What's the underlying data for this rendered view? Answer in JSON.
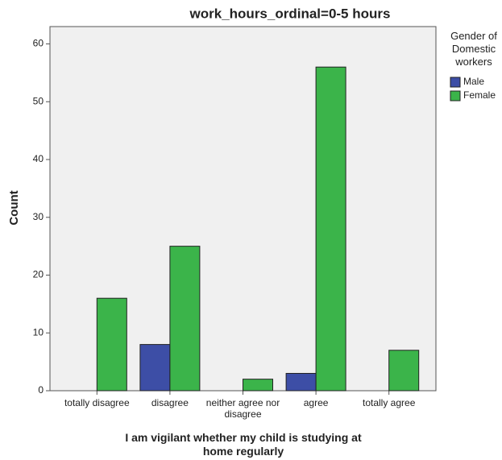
{
  "chart_data": {
    "type": "bar",
    "title": "work_hours_ordinal=0-5 hours",
    "x_label": "I am vigilant whether my child is studying at home regularly",
    "y_label": "Count",
    "legend_title": "Gender of Domestic workers",
    "categories": [
      "totally disagree",
      "disagree",
      "neither agree nor disagree",
      "agree",
      "totally agree"
    ],
    "series": [
      {
        "name": "Male",
        "color": "#3d4ea6",
        "values": [
          null,
          8,
          null,
          3,
          null
        ]
      },
      {
        "name": "Female",
        "color": "#3bb44a",
        "values": [
          16,
          25,
          2,
          56,
          7
        ]
      }
    ],
    "ylim": [
      0,
      63
    ],
    "yticks": [
      0,
      10,
      20,
      30,
      40,
      50,
      60
    ],
    "legend_position": "right"
  }
}
